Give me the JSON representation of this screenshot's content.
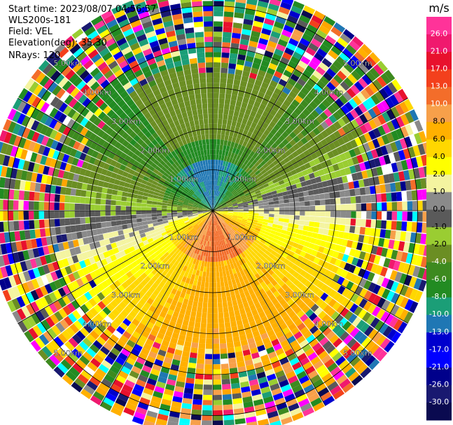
{
  "header": {
    "start_time": "Start time: 2023/08/07 04:56:57",
    "instrument": "WLS200s-181",
    "field": "Field: VEL",
    "elevation": "Elevation(deg): 35.30",
    "nrays": "NRays: 120"
  },
  "chart_data": {
    "type": "heatmap",
    "projection": "polar PPI",
    "field": "VEL",
    "elevation_deg": 35.3,
    "n_rays": 120,
    "range_rings_km": [
      1,
      2,
      3,
      4,
      5
    ],
    "ring_labels": [
      "1.00km",
      "2.00km",
      "3.00km",
      "4.00km",
      "5.00km"
    ],
    "max_range_km": 5.5,
    "colorbar": {
      "unit": "m/s",
      "ticks": [
        "26.0",
        "21.0",
        "17.0",
        "13.0",
        "10.0",
        "8.0",
        "6.0",
        "4.0",
        "2.0",
        "1.0",
        "0.0",
        "-1.0",
        "-2.0",
        "-4.0",
        "-6.0",
        "-8.0",
        "-10.0",
        "-13.0",
        "-17.0",
        "-21.0",
        "-26.0",
        "-30.0"
      ],
      "colors": [
        "#ff3399",
        "#f0196e",
        "#e8112d",
        "#f3401c",
        "#f36d2a",
        "#f7a04a",
        "#ffb000",
        "#ffd700",
        "#ffff00",
        "#f4f4a0",
        "#8a8a8a",
        "#5a5a5a",
        "#9acd32",
        "#6b8e23",
        "#3d8a1f",
        "#228b22",
        "#1b9e77",
        "#1f77b4",
        "#0000cd",
        "#0000ff",
        "#00008b",
        "#191970",
        "#0a0a50"
      ]
    },
    "approx_field": {
      "description_approach": "sectors",
      "near_north_sector": "-6.0 to -4.0",
      "near_south_sector": "10.0 to 13.0",
      "east_band": "2.0 to 4.0",
      "west_band": "-4.0 to -2.0"
    }
  }
}
